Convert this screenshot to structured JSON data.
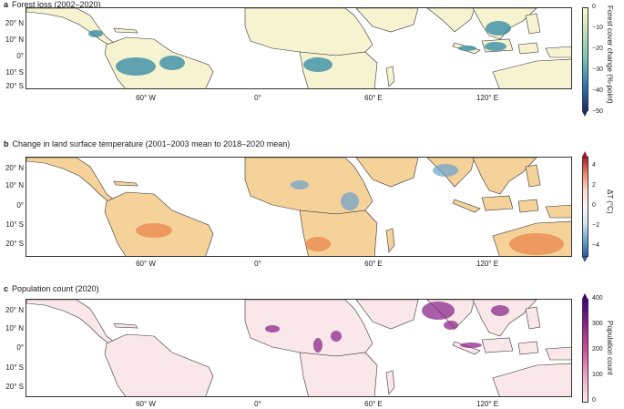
{
  "panels": {
    "a": {
      "letter": "a",
      "title": "Forest loss (2002–2020)",
      "colorbar_label": "Forest cover change (%-point)",
      "colorbar_ticks": [
        "0",
        "−10",
        "−20",
        "−30",
        "−40",
        "−50"
      ],
      "colors": {
        "top": "#fbfbd0",
        "mid": "#74c4b6",
        "bottom": "#1e2d6b"
      },
      "base_fill": "#f6f3d0"
    },
    "b": {
      "letter": "b",
      "title": "Change in land surface temperature (2001–2003 mean to 2018–2020 mean)",
      "colorbar_label": "ΔT (°C)",
      "colorbar_ticks": [
        "4",
        "2",
        "0",
        "−2",
        "−4"
      ],
      "colors": {
        "top": "#b2182b",
        "mid": "#f7f7f7",
        "bottom": "#2c5fa4"
      },
      "base_fill": "#f5d29a"
    },
    "c": {
      "letter": "c",
      "title": "Population count (2020)",
      "colorbar_label": "Population count",
      "colorbar_ticks": [
        "400",
        "300",
        "200",
        "100",
        "0"
      ],
      "colors": {
        "top": "#3f007d",
        "mid": "#d64f9a",
        "bottom": "#fbe8ee"
      },
      "base_fill": "#f9e7ea"
    }
  },
  "axes": {
    "lat_ticks": [
      "20° N",
      "10° N",
      "0°",
      "10° S",
      "20° S"
    ],
    "lon_ticks": [
      "60° W",
      "0°",
      "60° E",
      "120° E"
    ]
  }
}
